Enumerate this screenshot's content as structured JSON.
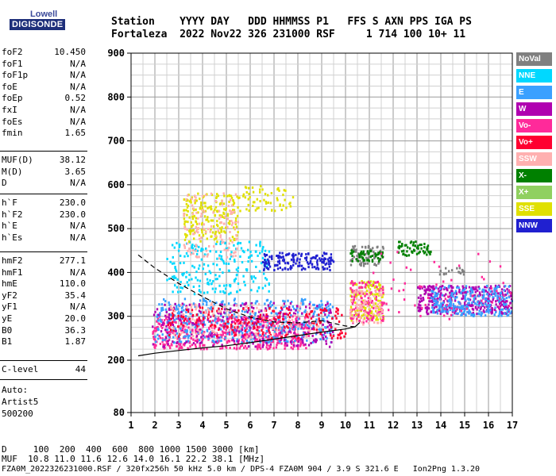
{
  "logo": {
    "top": "Lowell",
    "main": "DIGISONDE"
  },
  "header": {
    "line1": "Station    YYYY DAY   DDD HHMMSS P1   FFS S AXN PPS IGA PS",
    "line2": "Fortaleza  2022 Nov22 326 231000 RSF     1 714 100 10+ 11"
  },
  "params": {
    "group1": [
      {
        "label": "foF2",
        "value": "10.450"
      },
      {
        "label": "foF1",
        "value": "N/A"
      },
      {
        "label": "foF1p",
        "value": "N/A"
      },
      {
        "label": "foE",
        "value": "N/A"
      },
      {
        "label": "foEp",
        "value": "0.52"
      },
      {
        "label": "fxI",
        "value": "N/A"
      },
      {
        "label": "foEs",
        "value": "N/A"
      },
      {
        "label": "fmin",
        "value": "1.65"
      }
    ],
    "group2": [
      {
        "label": "MUF(D)",
        "value": "38.12"
      },
      {
        "label": "M(D)",
        "value": "3.65"
      },
      {
        "label": "D",
        "value": "N/A"
      }
    ],
    "group3": [
      {
        "label": "h`F",
        "value": "230.0"
      },
      {
        "label": "h`F2",
        "value": "230.0"
      },
      {
        "label": "h`E",
        "value": "N/A"
      },
      {
        "label": "h`Es",
        "value": "N/A"
      }
    ],
    "group4": [
      {
        "label": "hmF2",
        "value": "277.1"
      },
      {
        "label": "hmF1",
        "value": "N/A"
      },
      {
        "label": "hmE",
        "value": "110.0"
      },
      {
        "label": "yF2",
        "value": "35.4"
      },
      {
        "label": "yF1",
        "value": "N/A"
      },
      {
        "label": "yE",
        "value": "20.0"
      },
      {
        "label": "B0",
        "value": "36.3"
      },
      {
        "label": "B1",
        "value": "1.87"
      }
    ],
    "group5": [
      {
        "label": "C-level",
        "value": "44"
      }
    ],
    "auto": [
      "Auto:",
      "Artist5",
      "500200"
    ]
  },
  "legend": [
    {
      "label": "NoVal",
      "color": "#808080",
      "text_color": "#ffffff"
    },
    {
      "label": "NNE",
      "color": "#00d8ff",
      "text_color": "#ffffff"
    },
    {
      "label": "E",
      "color": "#3aa0ff",
      "text_color": "#ffffff"
    },
    {
      "label": "W",
      "color": "#b000b0",
      "text_color": "#ffffff"
    },
    {
      "label": "Vo-",
      "color": "#ff2a9a",
      "text_color": "#ffffff"
    },
    {
      "label": "Vo+",
      "color": "#ff0030",
      "text_color": "#ffffff"
    },
    {
      "label": "SSW",
      "color": "#ffb0b0",
      "text_color": "#ffffff"
    },
    {
      "label": "X-",
      "color": "#008000",
      "text_color": "#ffffff"
    },
    {
      "label": "X+",
      "color": "#90d060",
      "text_color": "#ffffff"
    },
    {
      "label": "SSE",
      "color": "#e0e000",
      "text_color": "#ffffff"
    },
    {
      "label": "NNW",
      "color": "#2020d0",
      "text_color": "#ffffff"
    }
  ],
  "footer": {
    "line1": "D     100  200  400  600  800 1000 1500 3000 [km]",
    "line2": "MUF  10.8 11.0 11.6 12.6 14.0 16.1 22.2 38.1 [MHz]",
    "line3": "FZA0M_2022326231000.RSF / 320fx256h 50 kHz 5.0 km / DPS-4 FZA0M 904 / 3.9 S 321.6 E   Ion2Png 1.3.20"
  },
  "chart_data": {
    "type": "scatter",
    "xlim": [
      1,
      17
    ],
    "ylim": [
      80,
      900
    ],
    "x_ticks": [
      1,
      2,
      3,
      4,
      5,
      6,
      7,
      8,
      9,
      10,
      11,
      12,
      13,
      14,
      15,
      16,
      17
    ],
    "y_ticks": [
      80,
      200,
      300,
      400,
      500,
      600,
      700,
      800,
      900
    ],
    "grid": true,
    "legend_position": "right",
    "ordinary_trace": [
      [
        1.3,
        210
      ],
      [
        2,
        216
      ],
      [
        3,
        222
      ],
      [
        4,
        228
      ],
      [
        5,
        233
      ],
      [
        6,
        240
      ],
      [
        7,
        248
      ],
      [
        8,
        256
      ],
      [
        9,
        264
      ],
      [
        10,
        271
      ],
      [
        10.4,
        276
      ],
      [
        10.6,
        286
      ]
    ],
    "profile_dashed": [
      [
        1.3,
        440
      ],
      [
        2,
        410
      ],
      [
        3,
        375
      ],
      [
        4,
        345
      ],
      [
        5,
        317
      ],
      [
        6,
        298
      ],
      [
        7,
        287
      ],
      [
        8,
        285
      ],
      [
        9,
        290
      ],
      [
        10,
        278
      ],
      [
        10.4,
        276
      ]
    ],
    "echo_clusters": [
      {
        "series": "Vo-",
        "x": [
          1.9,
          8.5
        ],
        "y": [
          225,
          300
        ],
        "count": 550
      },
      {
        "series": "E",
        "x": [
          2.0,
          9.5
        ],
        "y": [
          240,
          340
        ],
        "count": 450
      },
      {
        "series": "W",
        "x": [
          1.9,
          9.5
        ],
        "y": [
          230,
          330
        ],
        "count": 260
      },
      {
        "series": "Vo+",
        "x": [
          2.5,
          10.0
        ],
        "y": [
          250,
          320
        ],
        "count": 200
      },
      {
        "series": "SSW",
        "x": [
          2.5,
          9.0
        ],
        "y": [
          250,
          330
        ],
        "count": 120
      },
      {
        "series": "NNE",
        "x": [
          2.5,
          6.8
        ],
        "y": [
          350,
          470
        ],
        "count": 230
      },
      {
        "series": "SSE",
        "x": [
          3.2,
          5.5
        ],
        "y": [
          470,
          580
        ],
        "count": 200
      },
      {
        "series": "SSW",
        "x": [
          3.2,
          5.5
        ],
        "y": [
          430,
          580
        ],
        "count": 120
      },
      {
        "series": "SSE",
        "x": [
          5.5,
          7.8
        ],
        "y": [
          540,
          600
        ],
        "count": 60
      },
      {
        "series": "NNW",
        "x": [
          6.5,
          9.5
        ],
        "y": [
          405,
          445
        ],
        "count": 160
      },
      {
        "series": "NoVal",
        "x": [
          10.2,
          11.6
        ],
        "y": [
          415,
          460
        ],
        "count": 80
      },
      {
        "series": "X-",
        "x": [
          10.2,
          11.6
        ],
        "y": [
          425,
          450
        ],
        "count": 50
      },
      {
        "series": "X-",
        "x": [
          12.2,
          13.6
        ],
        "y": [
          438,
          470
        ],
        "count": 60
      },
      {
        "series": "SSE",
        "x": [
          10.2,
          11.6
        ],
        "y": [
          290,
          380
        ],
        "count": 150
      },
      {
        "series": "Vo-",
        "x": [
          10.2,
          11.6
        ],
        "y": [
          285,
          380
        ],
        "count": 120
      },
      {
        "series": "SSW",
        "x": [
          10.2,
          11.6
        ],
        "y": [
          280,
          360
        ],
        "count": 80
      },
      {
        "series": "W",
        "x": [
          13.0,
          17.0
        ],
        "y": [
          305,
          370
        ],
        "count": 380
      },
      {
        "series": "E",
        "x": [
          13.6,
          17.0
        ],
        "y": [
          300,
          370
        ],
        "count": 250
      },
      {
        "series": "NoVal",
        "x": [
          13.8,
          15.0
        ],
        "y": [
          395,
          410
        ],
        "count": 20
      },
      {
        "series": "Vo-",
        "x": [
          11.0,
          17.0
        ],
        "y": [
          290,
          450
        ],
        "count": 60
      }
    ]
  }
}
